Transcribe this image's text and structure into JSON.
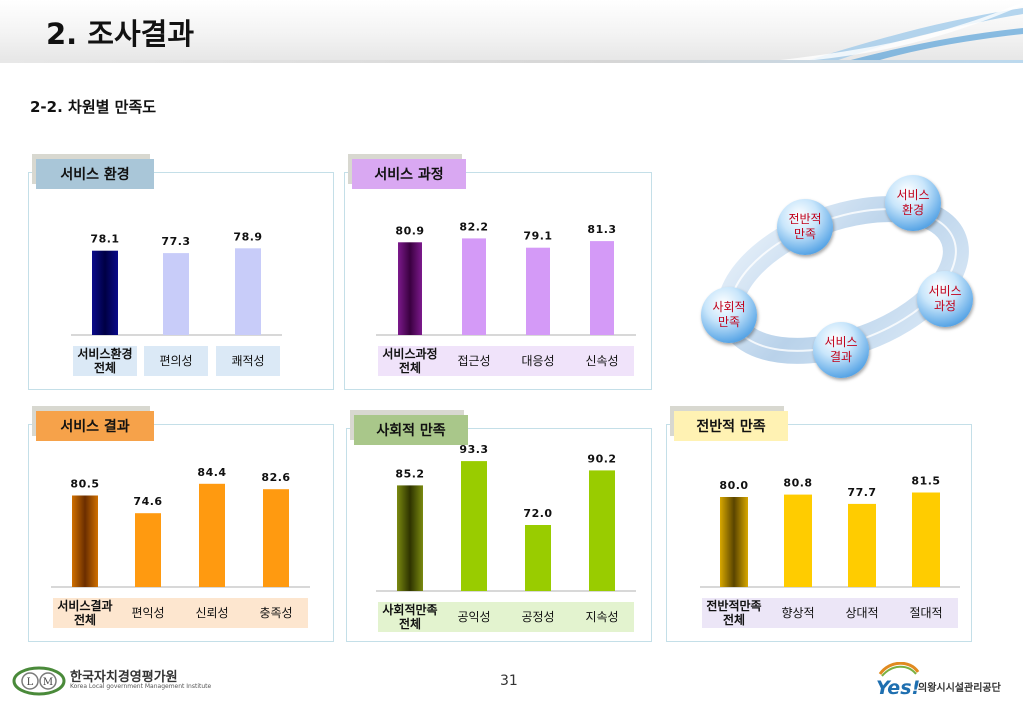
{
  "header": {
    "title": "2. 조사결과"
  },
  "section": {
    "subtitle": "2-2. 차원별 만족도"
  },
  "chart_data": [
    {
      "type": "bar",
      "title": "서비스 환경",
      "categories": [
        "서비스환경\n전체",
        "편의성",
        "쾌적성"
      ],
      "values": [
        78.1,
        77.3,
        78.9
      ],
      "ylim": [
        0,
        100
      ],
      "colors": {
        "tab": "#a9c6d8",
        "first_bar": [
          "#000044",
          "#0a0a8a"
        ],
        "bar": "#c8ccf9",
        "cell": "#dbe9f6"
      }
    },
    {
      "type": "bar",
      "title": "서비스 과정",
      "categories": [
        "서비스과정\n전체",
        "접근성",
        "대응성",
        "신속성"
      ],
      "values": [
        80.9,
        82.2,
        79.1,
        81.3
      ],
      "ylim": [
        0,
        100
      ],
      "colors": {
        "tab": "#d9a8f2",
        "first_bar": [
          "#3a0040",
          "#7c1a8c"
        ],
        "bar": "#d49af7",
        "cell": "#f0e3fa"
      }
    },
    {
      "type": "bar",
      "title": "서비스 결과",
      "categories": [
        "서비스결과\n전체",
        "편익성",
        "신뢰성",
        "충족성"
      ],
      "values": [
        80.5,
        74.6,
        84.4,
        82.6
      ],
      "ylim": [
        0,
        100
      ],
      "colors": {
        "tab": "#f6a24a",
        "first_bar": [
          "#6b2e00",
          "#d07000"
        ],
        "bar": "#ff9a10",
        "cell": "#fde6cf"
      }
    },
    {
      "type": "bar",
      "title": "사회적 만족",
      "categories": [
        "사회적만족\n전체",
        "공익성",
        "공정성",
        "지속성"
      ],
      "values": [
        85.2,
        93.3,
        72.0,
        90.2
      ],
      "ylim": [
        0,
        100
      ],
      "colors": {
        "tab": "#a9c78a",
        "first_bar": [
          "#2e3300",
          "#7a8a10"
        ],
        "bar": "#99cc00",
        "cell": "#e3f3cf"
      }
    },
    {
      "type": "bar",
      "title": "전반적 만족",
      "categories": [
        "전반적만족\n전체",
        "향상적",
        "상대적",
        "절대적"
      ],
      "values": [
        80.0,
        80.8,
        77.7,
        81.5
      ],
      "ylim": [
        0,
        100
      ],
      "colors": {
        "tab": "#fff2b3",
        "first_bar": [
          "#5a4400",
          "#d8a800"
        ],
        "bar": "#ffcc00",
        "cell": "#ece6f7"
      }
    }
  ],
  "cycle": {
    "nodes": [
      "서비스\n환경",
      "서비스\n과정",
      "서비스\n결과",
      "사회적\n만족",
      "전반적\n만족"
    ],
    "text_color": "#c0001a"
  },
  "footer": {
    "org_left": "한국자치경영평가원",
    "org_left_en": "Korea Local government Management Institute",
    "logo_left_text": "LM",
    "page_number": "31",
    "logo_right_text": "Yes!",
    "org_right": "의왕시시설관리공단"
  }
}
